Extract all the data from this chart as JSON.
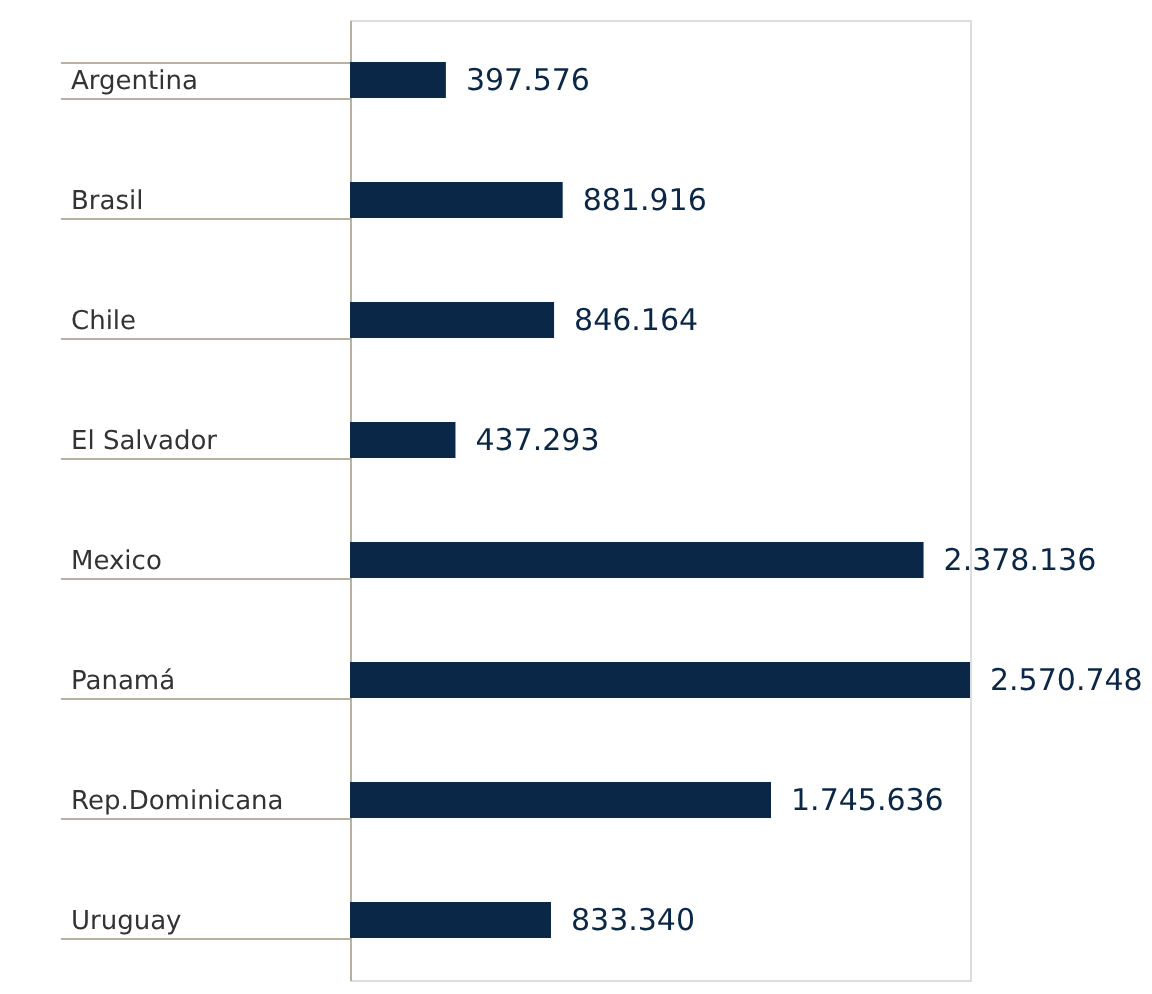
{
  "chart_data": {
    "type": "bar",
    "orientation": "horizontal",
    "categories": [
      "Argentina",
      "Brasil",
      "Chile",
      "El Salvador",
      "Mexico",
      "Panamá",
      "Rep.Dominicana",
      "Uruguay"
    ],
    "values": [
      397576,
      881916,
      846164,
      437293,
      2378136,
      2570748,
      1745636,
      833340
    ],
    "value_labels": [
      "397.576",
      "881.916",
      "846.164",
      "437.293",
      "2.378.136",
      "2.570.748",
      "1.745.636",
      "833.340"
    ],
    "color": "#0b2747",
    "grid": false
  }
}
